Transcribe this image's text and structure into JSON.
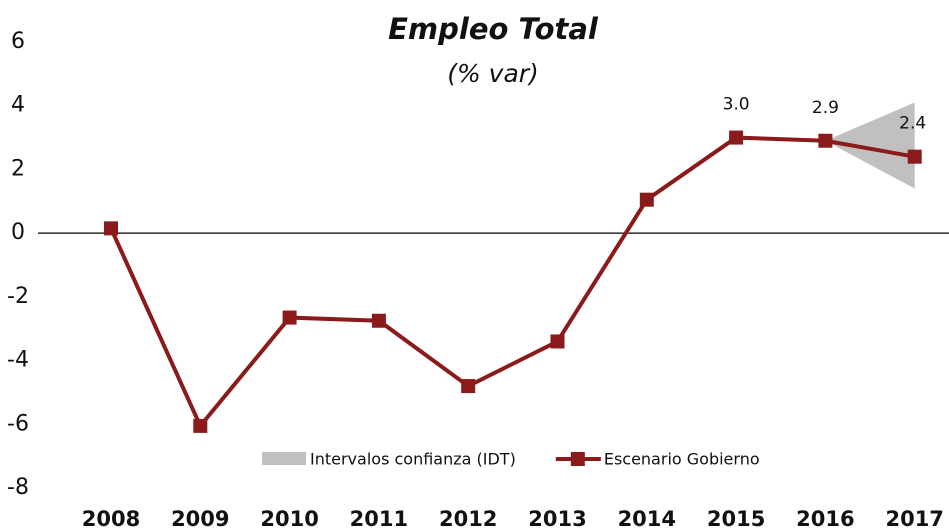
{
  "chart_data": {
    "type": "line",
    "title": "Empleo Total",
    "subtitle": "(% var)",
    "categories": [
      "2008",
      "2009",
      "2010",
      "2011",
      "2012",
      "2013",
      "2014",
      "2015",
      "2016",
      "2017"
    ],
    "series": [
      {
        "name": "Intervalos confianza (IDT)",
        "kind": "band",
        "color": "#c0c0c0",
        "lower": [
          null,
          null,
          null,
          null,
          null,
          null,
          null,
          null,
          2.9,
          1.4
        ],
        "upper": [
          null,
          null,
          null,
          null,
          null,
          null,
          null,
          null,
          2.9,
          4.1
        ]
      },
      {
        "name": "Escenario Gobierno",
        "color": "#8b1a1a",
        "values": [
          0.15,
          -6.05,
          -2.65,
          -2.75,
          -4.8,
          -3.4,
          1.05,
          3.0,
          2.9,
          2.4
        ],
        "value_labels": [
          null,
          null,
          null,
          null,
          null,
          null,
          null,
          "3.0",
          "2.9",
          "2.4"
        ]
      }
    ],
    "ylim": [
      -8,
      6
    ],
    "yticks": [
      -8,
      -6,
      -4,
      -2,
      0,
      2,
      4,
      6
    ]
  }
}
